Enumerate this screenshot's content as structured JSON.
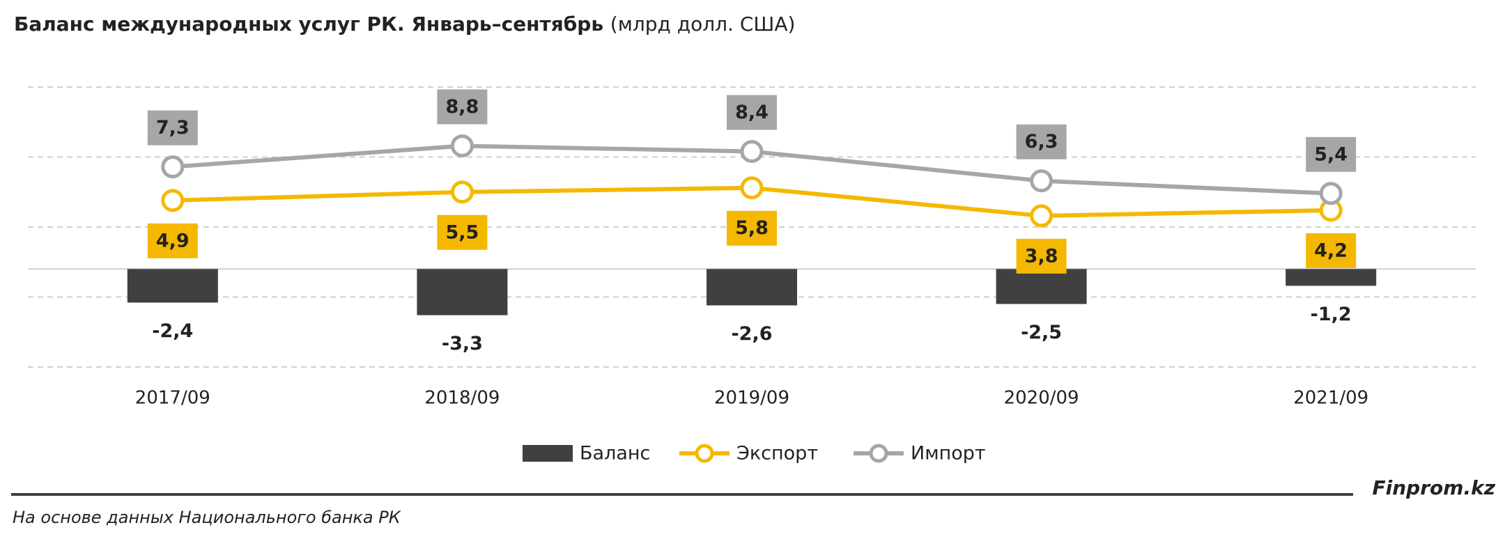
{
  "chart_data": {
    "type": "bar-line",
    "title": "Баланс международных услуг РК. Январь–сентябрь",
    "subtitle": "(млрд долл. США)",
    "categories": [
      "2017/09",
      "2018/09",
      "2019/09",
      "2020/09",
      "2021/09"
    ],
    "series": [
      {
        "name": "Баланс",
        "type": "bar",
        "color": "#404040",
        "values": [
          -2.4,
          -3.3,
          -2.6,
          -2.5,
          -1.2
        ],
        "value_labels": [
          "-2,4",
          "-3,3",
          "-2,6",
          "-2,5",
          "-1,2"
        ]
      },
      {
        "name": "Экспорт",
        "type": "line",
        "color": "#f5b800",
        "values": [
          4.9,
          5.5,
          5.8,
          3.8,
          4.2
        ],
        "value_labels": [
          "4,9",
          "5,5",
          "5,8",
          "3,8",
          "4,2"
        ]
      },
      {
        "name": "Импорт",
        "type": "line",
        "color": "#a6a6a6",
        "values": [
          7.3,
          8.8,
          8.4,
          6.3,
          5.4
        ],
        "value_labels": [
          "7,3",
          "8,8",
          "8,4",
          "6,3",
          "5,4"
        ]
      }
    ],
    "ylim": [
      -7.5,
      13.5
    ],
    "yticks": [
      -7,
      -2,
      3,
      8,
      13
    ],
    "grid": true,
    "source": "На основе данных Национального банка РК",
    "brand": "Finprom.kz"
  }
}
